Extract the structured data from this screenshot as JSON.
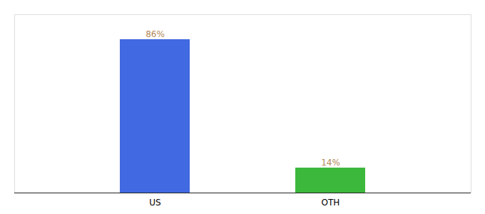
{
  "chart_data": {
    "type": "bar",
    "categories": [
      "US",
      "OTH"
    ],
    "values": [
      86,
      14
    ],
    "value_labels": [
      "86%",
      "14%"
    ],
    "colors": [
      "#4169e1",
      "#3cb83c"
    ],
    "ylim": [
      0,
      100
    ],
    "grid": false,
    "data_labels": true,
    "tick_labels": "x"
  }
}
